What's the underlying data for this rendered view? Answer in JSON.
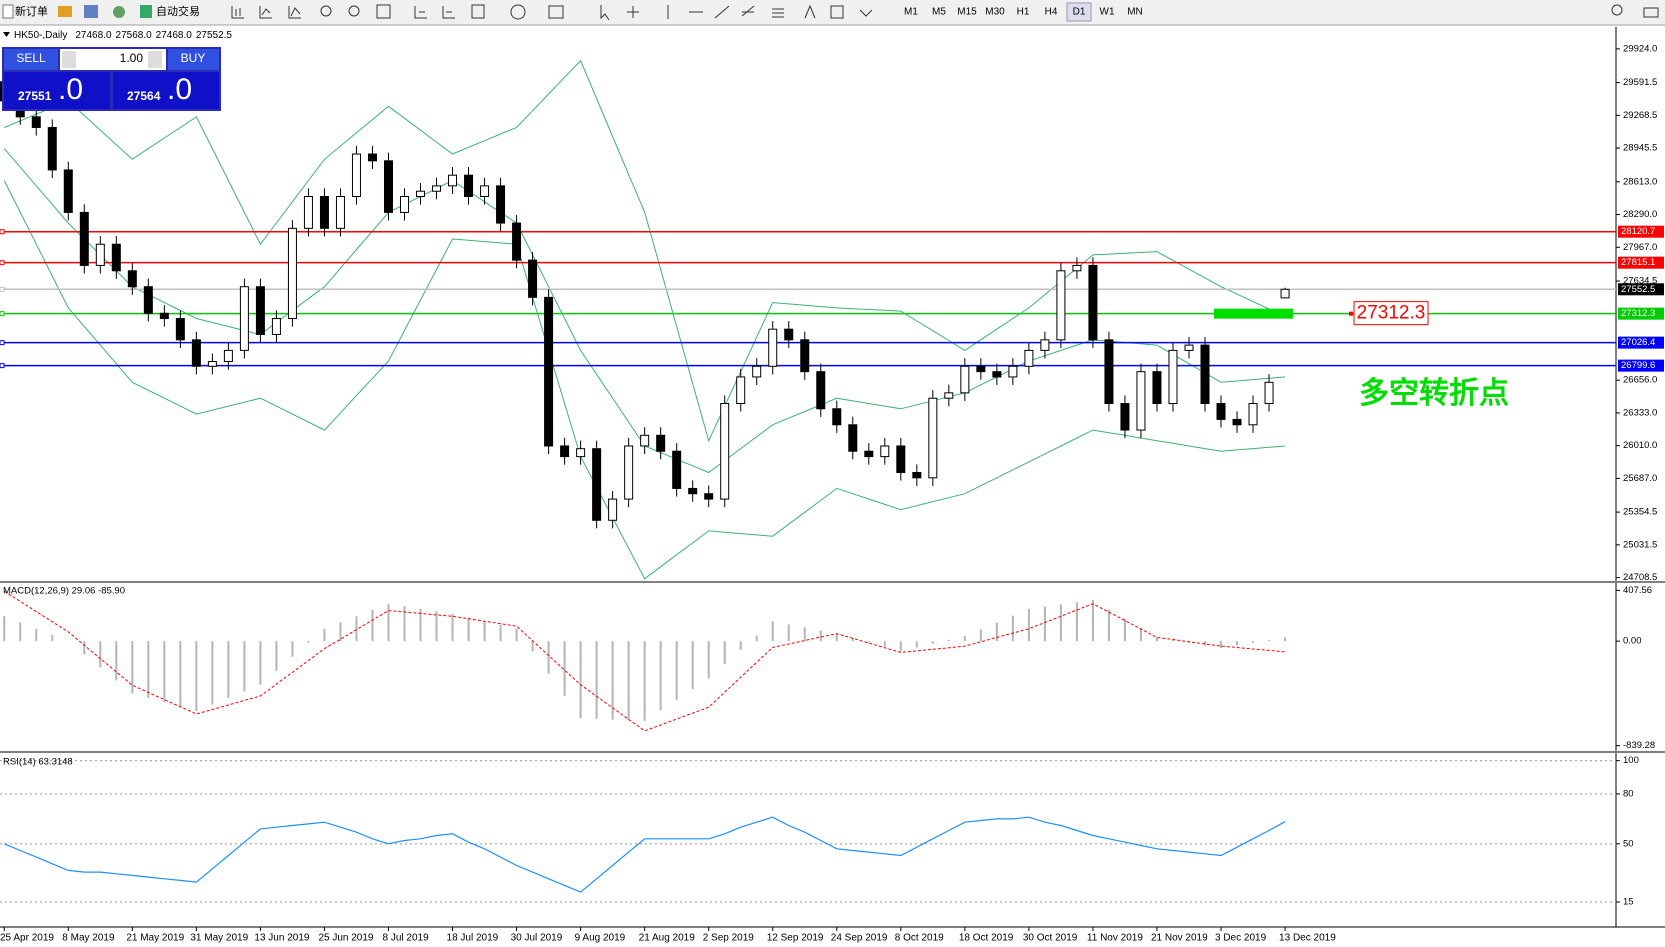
{
  "toolbar": {
    "new_order": "新订单",
    "auto_trade": "自动交易",
    "timeframes": [
      "M1",
      "M5",
      "M15",
      "M30",
      "H1",
      "H4",
      "D1",
      "W1",
      "MN"
    ],
    "active": "D1"
  },
  "trade_panel": {
    "sell": "SELL",
    "lots": "1.00",
    "buy": "BUY",
    "sell_big": "27551",
    "sell_small": ".0",
    "buy_big": "27564",
    "buy_small": ".0"
  },
  "chart_data": [
    {
      "type": "candlestick",
      "title": "HK50-,Daily",
      "header_ohlc": [
        {
          "value": 27468,
          "label": "27468.0"
        },
        {
          "value": 27568,
          "label": "27568.0"
        },
        {
          "value": 27468,
          "label": "27468.0"
        },
        {
          "value": 27552.5,
          "label": "27552.5"
        }
      ],
      "categories": [
        "25 Apr 2019",
        null,
        null,
        null,
        "8 May 2019",
        null,
        null,
        null,
        "21 May 2019",
        null,
        null,
        null,
        "31 May 2019",
        null,
        null,
        null,
        "13 Jun 2019",
        null,
        null,
        null,
        "25 Jun 2019",
        null,
        null,
        null,
        "8 Jul 2019",
        null,
        null,
        null,
        "18 Jul 2019",
        null,
        null,
        null,
        "30 Jul 2019",
        null,
        null,
        null,
        "9 Aug 2019",
        null,
        null,
        null,
        "21 Aug 2019",
        null,
        null,
        null,
        "2 Sep 2019",
        null,
        null,
        null,
        "12 Sep 2019",
        null,
        null,
        null,
        "24 Sep 2019",
        null,
        null,
        null,
        "8 Oct 2019",
        null,
        null,
        null,
        "18 Oct 2019",
        null,
        null,
        null,
        "30 Oct 2019",
        null,
        null,
        null,
        "11 Nov 2019",
        null,
        null,
        null,
        "21 Nov 2019",
        null,
        null,
        null,
        "3 Dec 2019",
        null,
        null,
        null,
        "13 Dec 2019"
      ],
      "open": [
        29600,
        29411,
        29254,
        29149,
        28730,
        28311,
        27788,
        27997,
        27735,
        27578,
        27316,
        27264,
        27054,
        26793,
        26840,
        26950,
        27578,
        27107,
        27264,
        28154,
        28468,
        28154,
        28468,
        28887,
        28820,
        28311,
        28468,
        28520,
        28573,
        28678,
        28468,
        28573,
        28206,
        27840,
        27473,
        26007,
        25902,
        25980,
        25274,
        25483,
        26007,
        26112,
        25955,
        25588,
        25536,
        25483,
        26426,
        26688,
        26793,
        27159,
        27054,
        26740,
        26374,
        26216,
        25955,
        25902,
        26007,
        25745,
        25693,
        26478,
        26531,
        26793,
        26740,
        26688,
        26793,
        26950,
        27054,
        27735,
        27788,
        27054,
        26426,
        26164,
        26740,
        26426,
        26950,
        27002,
        26426,
        26269,
        26216,
        26426,
        27468
      ],
      "high": [
        29680,
        29491,
        29334,
        29229,
        28810,
        28391,
        28077,
        28077,
        27815,
        27658,
        27396,
        27344,
        27134,
        26920,
        27030,
        27658,
        27658,
        27344,
        28234,
        28548,
        28548,
        28548,
        28967,
        28967,
        28900,
        28548,
        28600,
        28653,
        28758,
        28758,
        28653,
        28653,
        28286,
        27920,
        27553,
        26087,
        26060,
        26060,
        25563,
        26087,
        26192,
        26192,
        26035,
        25668,
        25616,
        26506,
        26768,
        26873,
        27239,
        27239,
        27134,
        26820,
        26454,
        26296,
        26035,
        26087,
        26087,
        25825,
        26558,
        26611,
        26873,
        26873,
        26820,
        26873,
        27030,
        27134,
        27815,
        27868,
        27868,
        27134,
        26506,
        26820,
        26820,
        27030,
        27082,
        27082,
        26506,
        26349,
        26506,
        26715,
        27568
      ],
      "low": [
        29331,
        29174,
        29069,
        28650,
        28231,
        27708,
        27708,
        27655,
        27498,
        27236,
        27184,
        26974,
        26713,
        26713,
        26760,
        26870,
        27027,
        27027,
        27184,
        28074,
        28074,
        28074,
        28388,
        28740,
        28231,
        28231,
        28388,
        28440,
        28493,
        28388,
        28388,
        28126,
        27760,
        27393,
        25927,
        25822,
        25822,
        25194,
        25194,
        25403,
        25927,
        25875,
        25508,
        25456,
        25403,
        25403,
        26346,
        26608,
        26713,
        26974,
        26660,
        26294,
        26136,
        25875,
        25822,
        25822,
        25665,
        25613,
        25613,
        26398,
        26451,
        26660,
        26608,
        26608,
        26713,
        26870,
        26974,
        27655,
        26974,
        26346,
        26084,
        26084,
        26346,
        26346,
        26870,
        26346,
        26189,
        26136,
        26136,
        26346,
        27468
      ],
      "close": [
        29411,
        29254,
        29149,
        28730,
        28311,
        27788,
        27997,
        27735,
        27578,
        27316,
        27264,
        27054,
        26793,
        26840,
        26950,
        27578,
        27107,
        27264,
        28154,
        28468,
        28154,
        28468,
        28887,
        28820,
        28311,
        28468,
        28520,
        28573,
        28678,
        28468,
        28573,
        28206,
        27840,
        27473,
        26007,
        25902,
        25980,
        25274,
        25483,
        26007,
        26112,
        25955,
        25588,
        25536,
        25483,
        26426,
        26688,
        26793,
        27159,
        27054,
        26740,
        26374,
        26216,
        25955,
        25902,
        26007,
        25745,
        25693,
        26478,
        26531,
        26793,
        26740,
        26688,
        26793,
        26950,
        27054,
        27735,
        27788,
        27054,
        26426,
        26164,
        26740,
        26426,
        26950,
        27002,
        26426,
        26269,
        26216,
        26426,
        26635,
        27552.5
      ],
      "bands": {
        "color": "#3cb371",
        "upper": [
          29149,
          29215,
          29280,
          29346,
          29411,
          29267,
          29123,
          28979,
          28835,
          28940,
          29045,
          29149,
          29254,
          28940,
          28626,
          28311,
          27997,
          28207,
          28416,
          28626,
          28835,
          28966,
          29097,
          29227,
          29358,
          29240,
          29122,
          29005,
          28887,
          28953,
          29018,
          29084,
          29149,
          29314,
          29479,
          29644,
          29809,
          29435,
          29060,
          28686,
          28311,
          27748,
          27185,
          26622,
          26059,
          26400,
          26740,
          27081,
          27421,
          27408,
          27395,
          27382,
          27369,
          27361,
          27353,
          27345,
          27337,
          27240,
          27144,
          27047,
          26950,
          27055,
          27160,
          27264,
          27369,
          27500,
          27631,
          27761,
          27892,
          27900,
          27908,
          27916,
          27924,
          27838,
          27751,
          27665,
          27578,
          27505,
          27431,
          27358,
          27285
        ],
        "middle": [
          28940,
          28757,
          28573,
          28390,
          28206,
          28049,
          27892,
          27735,
          27578,
          27500,
          27421,
          27343,
          27264,
          27225,
          27186,
          27146,
          27107,
          27225,
          27343,
          27460,
          27578,
          27761,
          27945,
          28128,
          28311,
          28390,
          28468,
          28547,
          28625,
          28520,
          28416,
          28311,
          28206,
          27892,
          27578,
          27264,
          26950,
          26714,
          26479,
          26243,
          26007,
          25942,
          25876,
          25811,
          25745,
          25863,
          25981,
          26098,
          26216,
          26282,
          26347,
          26413,
          26478,
          26452,
          26426,
          26400,
          26374,
          26413,
          26453,
          26492,
          26531,
          26610,
          26688,
          26767,
          26845,
          26897,
          26950,
          27002,
          27054,
          27041,
          27028,
          27015,
          27002,
          26910,
          26819,
          26727,
          26635,
          26648,
          26662,
          26675,
          26688
        ],
        "lower": [
          28625,
          28311,
          27997,
          27683,
          27369,
          27186,
          27002,
          26819,
          26635,
          26557,
          26478,
          26400,
          26321,
          26360,
          26400,
          26439,
          26478,
          26400,
          26321,
          26243,
          26164,
          26334,
          26505,
          26675,
          26845,
          27146,
          27447,
          27748,
          28049,
          28036,
          28023,
          28010,
          27997,
          27473,
          26949,
          26426,
          25902,
          25601,
          25300,
          24999,
          24698,
          24816,
          24934,
          25051,
          25169,
          25156,
          25143,
          25130,
          25117,
          25235,
          25353,
          25470,
          25588,
          25536,
          25484,
          25431,
          25379,
          25418,
          25458,
          25497,
          25536,
          25615,
          25693,
          25772,
          25850,
          25929,
          26007,
          26086,
          26164,
          26138,
          26112,
          26085,
          26059,
          26033,
          26007,
          25981,
          25955,
          25968,
          25981,
          25994,
          26007
        ]
      },
      "hlines": [
        {
          "value": 28120.7,
          "color": "#ff0000"
        },
        {
          "value": 27815.1,
          "color": "#ff0000"
        },
        {
          "value": 27552.5,
          "color": "#c0c0c0",
          "label_color": "#000000"
        },
        {
          "value": 27312.3,
          "color": "#00cc00"
        },
        {
          "value": 27026.4,
          "color": "#0000ff"
        },
        {
          "value": 26799.6,
          "color": "#0000ff"
        }
      ],
      "annotation": {
        "value": 27312.3,
        "text": "多空转折点",
        "color": "#00dd00",
        "label_color": "#ff0000"
      },
      "ylim": [
        24675,
        30140
      ],
      "yticks": [
        {
          "value": 29924,
          "label": "29924.0"
        },
        29591.5,
        29268.5,
        28945.5,
        {
          "value": 28613,
          "label": "28613.0"
        },
        {
          "value": 28290,
          "label": "28290.0"
        },
        {
          "value": 27967,
          "label": "27967.0"
        },
        27634.5,
        {
          "value": 26656,
          "label": "26656.0"
        },
        {
          "value": 26333,
          "label": "26333.0"
        },
        {
          "value": 26010,
          "label": "26010.0"
        },
        {
          "value": 25687,
          "label": "25687.0"
        },
        25354.5,
        25031.5,
        24708.5
      ]
    },
    {
      "type": "macd",
      "title": "MACD(12,26,9) 29.06 -85.90",
      "histogram_color": "#b4b4b4",
      "signal_color": "#ff0000",
      "histogram": [
        200,
        150,
        100,
        50,
        0,
        -105,
        -210,
        -315,
        -420,
        -455,
        -490,
        -525,
        -560,
        -508,
        -455,
        -403,
        -350,
        -238,
        -125,
        -13,
        100,
        150,
        200,
        250,
        300,
        280,
        260,
        240,
        220,
        190,
        160,
        130,
        100,
        -80,
        -260,
        -440,
        -620,
        -625,
        -630,
        -635,
        -640,
        -555,
        -470,
        -385,
        -300,
        -185,
        -70,
        45,
        160,
        135,
        110,
        85,
        60,
        25,
        -10,
        -45,
        -80,
        -50,
        -20,
        10,
        40,
        95,
        150,
        205,
        260,
        278,
        295,
        313,
        330,
        255,
        180,
        105,
        30,
        9,
        -13,
        -34,
        -55,
        -34,
        -13,
        8,
        29.06
      ],
      "signal": [
        400,
        319,
        237,
        156,
        74,
        -33,
        -140,
        -247,
        -354,
        -412,
        -470,
        -527,
        -585,
        -549,
        -513,
        -476,
        -440,
        -345,
        -250,
        -155,
        -60,
        16,
        93,
        169,
        245,
        234,
        223,
        211,
        200,
        180,
        160,
        140,
        120,
        3,
        -115,
        -233,
        -350,
        -443,
        -535,
        -628,
        -720,
        -673,
        -625,
        -578,
        -530,
        -410,
        -290,
        -170,
        -50,
        -23,
        5,
        33,
        60,
        23,
        -15,
        -53,
        -90,
        -78,
        -65,
        -53,
        -40,
        -5,
        30,
        65,
        100,
        150,
        200,
        250,
        300,
        233,
        165,
        98,
        30,
        13,
        -5,
        -23,
        -40,
        -51,
        -63,
        -74,
        -85.9
      ],
      "ylim": [
        -882,
        467
      ],
      "yticks": [
        407.56,
        {
          "value": 0,
          "label": "0.00"
        },
        -839.28
      ]
    },
    {
      "type": "line",
      "title": "RSI(14) 63.3148",
      "color": "#1e90ff",
      "grid": true,
      "values": [
        50,
        46,
        42,
        38,
        34,
        33,
        33,
        32,
        31,
        30,
        29,
        28,
        27,
        35,
        43,
        51,
        59,
        60,
        61,
        62,
        63,
        60,
        57,
        53,
        50,
        52,
        53,
        55,
        56,
        51,
        47,
        42,
        37,
        33,
        29,
        25,
        21,
        29,
        37,
        45,
        53,
        53,
        53,
        53,
        53,
        56,
        60,
        63,
        66,
        61,
        57,
        52,
        47,
        46,
        45,
        44,
        43,
        48,
        53,
        58,
        63,
        64,
        65,
        65,
        66,
        63,
        61,
        58,
        55,
        53,
        51,
        49,
        47,
        46,
        45,
        44,
        43,
        48,
        53,
        58,
        63.3148
      ],
      "ylim": [
        0,
        104
      ],
      "yticks": [
        100,
        80,
        50,
        15
      ]
    }
  ]
}
